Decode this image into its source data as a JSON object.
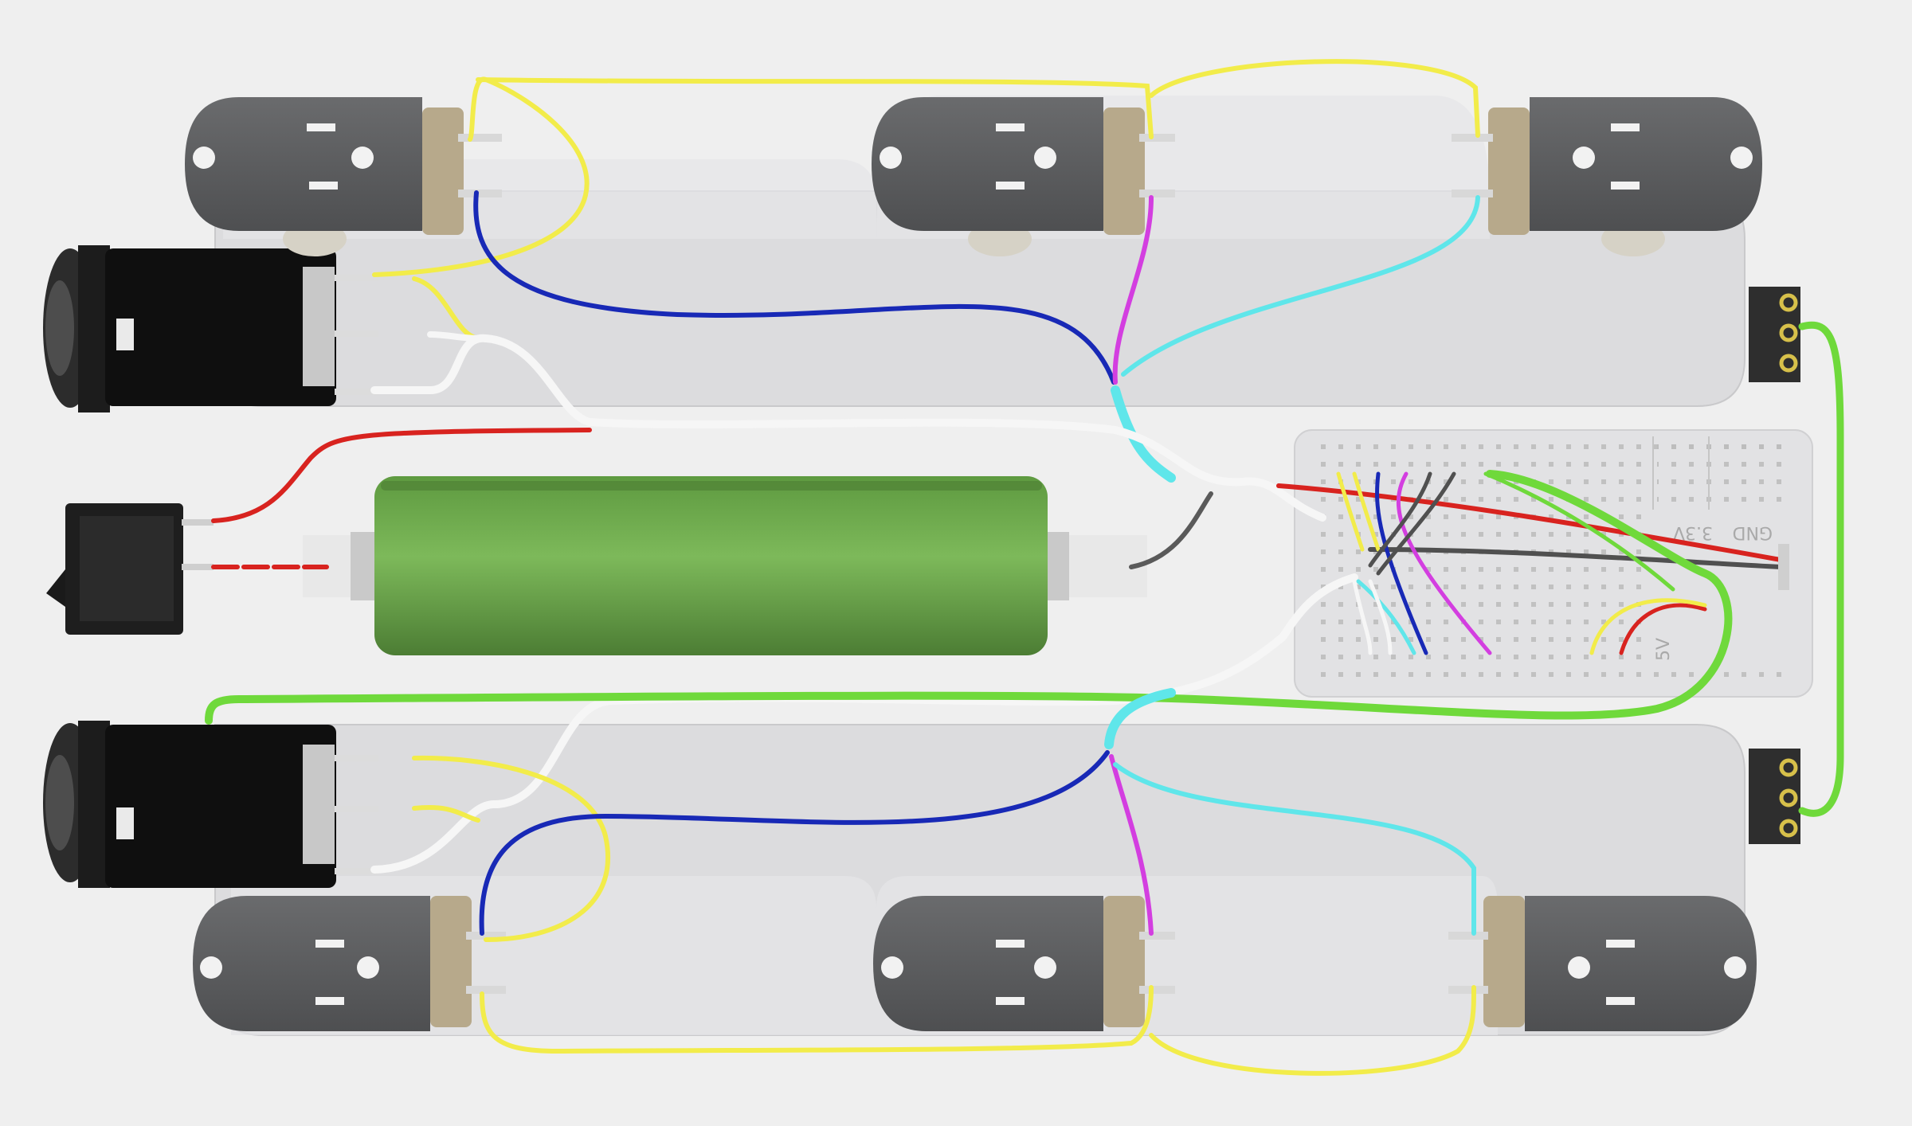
{
  "diagram": {
    "breadboard_labels": {
      "gnd": "GND",
      "v33": "3.3V",
      "v5": "5V"
    },
    "components": [
      {
        "id": "jack-top-1",
        "name": "jack-socket"
      },
      {
        "id": "jack-top-2",
        "name": "jack-socket"
      },
      {
        "id": "jack-top-3",
        "name": "jack-socket"
      },
      {
        "id": "jack-bottom-1",
        "name": "jack-socket"
      },
      {
        "id": "jack-bottom-2",
        "name": "jack-socket"
      },
      {
        "id": "jack-bottom-3",
        "name": "jack-socket"
      },
      {
        "id": "audio-jack-top",
        "name": "quarter-inch-audio-jack"
      },
      {
        "id": "audio-jack-bottom",
        "name": "quarter-inch-audio-jack"
      },
      {
        "id": "rocker-switch",
        "name": "power-switch"
      },
      {
        "id": "battery",
        "name": "battery-cell"
      },
      {
        "id": "breadboard",
        "name": "mini-breadboard"
      },
      {
        "id": "header-top",
        "name": "pin-header"
      },
      {
        "id": "header-bottom",
        "name": "pin-header"
      }
    ],
    "colors": {
      "background": "#efefef",
      "plate": "#dcdcde",
      "jack_body": "#5c5d5f",
      "battery": "#78b255",
      "wire_yellow": "#f2ec4a",
      "wire_blue": "#1829b6",
      "wire_magenta": "#d33ee0",
      "wire_cyan": "#5fe6ea",
      "wire_white": "#f6f6f6",
      "wire_red": "#d8231f",
      "wire_green": "#6fd93b",
      "wire_black": "#505050"
    }
  }
}
